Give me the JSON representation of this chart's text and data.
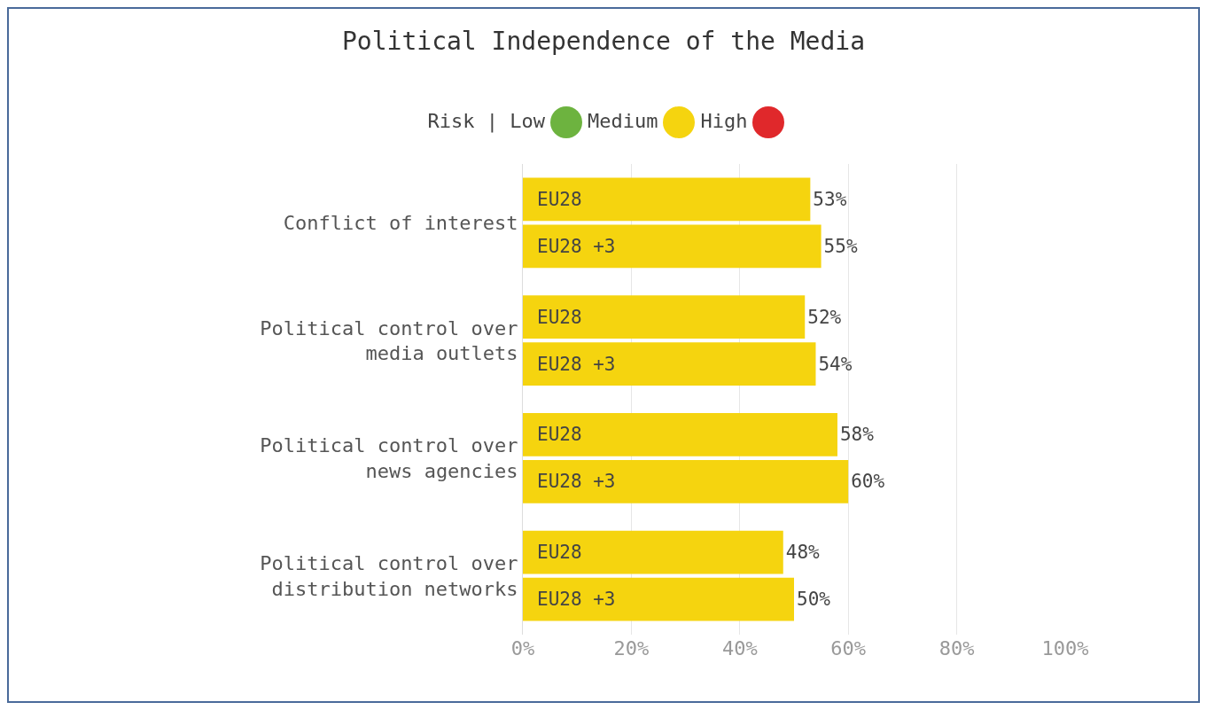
{
  "chart_data": {
    "type": "bar",
    "orientation": "horizontal",
    "title": "Political Independence of the Media",
    "annotations": [
      "Risk | Low",
      "Medium",
      "High"
    ],
    "categories": [
      "Conflict of interest",
      "Political control over media outlets",
      "Political control over news agencies",
      "Political control over distribution networks"
    ],
    "series": [
      {
        "name": "EU28",
        "color": "#f5d40f",
        "values": [
          53,
          52,
          58,
          48
        ]
      },
      {
        "name": "EU28 +3",
        "color": "#f5d40f",
        "values": [
          55,
          54,
          60,
          50
        ]
      }
    ],
    "xlim": [
      0,
      100
    ],
    "xticks": [
      {
        "value": 0,
        "label": "0%"
      },
      {
        "value": 20,
        "label": "20%"
      },
      {
        "value": 40,
        "label": "40%"
      },
      {
        "value": 60,
        "label": "60%"
      },
      {
        "value": 80,
        "label": "80%"
      },
      {
        "value": 100,
        "label": "100%"
      }
    ],
    "value_labels": [
      [
        "53%",
        "52%",
        "58%",
        "48%"
      ],
      [
        "55%",
        "54%",
        "60%",
        "50%"
      ]
    ],
    "grid": "x",
    "legend": false
  }
}
